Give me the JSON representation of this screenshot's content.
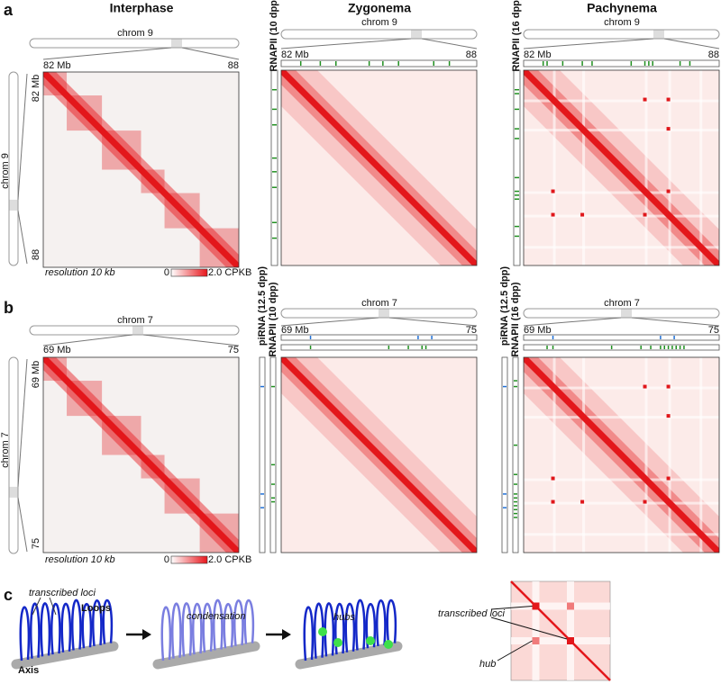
{
  "columns": [
    "Interphase",
    "Zygonema",
    "Pachynema"
  ],
  "panel_a": {
    "label": "a",
    "chrom": "chrom 9",
    "start": "82 Mb",
    "end": "88",
    "tracks_zygonema": [
      "RNAPII (10 dpp)"
    ],
    "tracks_pachynema": [
      "RNAPII (16 dpp)"
    ],
    "resolution": "resolution 10 kb",
    "scale_min": "0",
    "scale_max": "2.0 CPKB"
  },
  "panel_b": {
    "label": "b",
    "chrom": "chrom 7",
    "start": "69 Mb",
    "end": "75",
    "tracks_zygonema": [
      "piRNA (12.5 dpp)",
      "RNAPII (10 dpp)"
    ],
    "tracks_pachynema": [
      "piRNA (12.5 dpp)",
      "RNAPII (16 dpp)"
    ],
    "resolution": "resolution 10 kb",
    "scale_min": "0",
    "scale_max": "2.0 CPKB"
  },
  "panel_c": {
    "label": "c",
    "transcribed_loci": "transcribed loci",
    "loops": "Loops",
    "axis": "Axis",
    "condensation": "condensation",
    "hubs": "hubs",
    "matrix_transcribed_loci": "transcribed loci",
    "hub": "hub"
  }
}
